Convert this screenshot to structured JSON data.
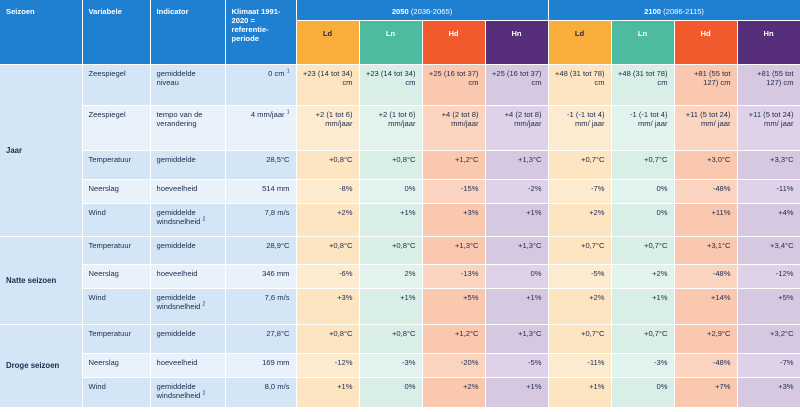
{
  "header": {
    "seizoen": "Seizoen",
    "variabele": "Variabele",
    "indicator": "Indicator",
    "klimaat": "Klimaat 1991-2020 = referentie-periode",
    "period_2050_year": "2050",
    "period_2050_range": "(2036-2065)",
    "period_2100_year": "2100",
    "period_2100_range": "(2086-2115)",
    "scenarios": [
      "Ld",
      "Ln",
      "Hd",
      "Hn",
      "Ld",
      "Ln",
      "Hd",
      "Hn"
    ],
    "scenario_colors": [
      "#f9ad3a",
      "#4dbba0",
      "#f05a2c",
      "#572e7a",
      "#f9ad3a",
      "#4dbba0",
      "#f05a2c",
      "#572e7a"
    ]
  },
  "seasons": [
    {
      "name": "Jaar",
      "rows": [
        {
          "variabele": "Zeespiegel",
          "indicator": "gemiddelde niveau",
          "ref": "0 cm",
          "ref_note": "1",
          "values": [
            "+23 (14 tot 34) cm",
            "+23 (14 tot 34) cm",
            "+25 (16 tot 37) cm",
            "+25 (16 tot 37) cm",
            "+48 (31 tot 78) cm",
            "+48 (31 tot 78) cm",
            "+81 (55 tot 127) cm",
            "+81 (55 tot 127) cm"
          ]
        },
        {
          "variabele": "Zeespiegel",
          "indicator": "tempo van de verandering",
          "ref": "4 mm/jaar",
          "ref_note": "1",
          "values": [
            "+2 (1 tot 6) mm/jaar",
            "+2 (1 tot 6) mm/jaar",
            "+4 (2 tot 8) mm/jaar",
            "+4 (2 tot 8) mm/jaar",
            "-1 (-1 tot 4) mm/ jaar",
            "-1 (-1 tot 4) mm/ jaar",
            "+11 (5 tot 24) mm/ jaar",
            "+11 (5 tot 24) mm/ jaar"
          ]
        },
        {
          "variabele": "Temperatuur",
          "indicator": "gemiddelde",
          "ref": "28,5°C",
          "ref_note": "",
          "values": [
            "+0,8°C",
            "+0,8°C",
            "+1,2°C",
            "+1,3°C",
            "+0,7°C",
            "+0,7°C",
            "+3,0°C",
            "+3,3°C"
          ]
        },
        {
          "variabele": "Neerslag",
          "indicator": "hoeveelheid",
          "ref": "514 mm",
          "ref_note": "",
          "values": [
            "-8%",
            "0%",
            "-15%",
            "-2%",
            "-7%",
            "0%",
            "-48%",
            "-11%"
          ]
        },
        {
          "variabele": "Wind",
          "indicator": "gemiddelde windsnelheid",
          "ind_note": "2",
          "ref": "7,8 m/s",
          "ref_note": "",
          "values": [
            "+2%",
            "+1%",
            "+3%",
            "+1%",
            "+2%",
            "0%",
            "+11%",
            "+4%"
          ]
        }
      ]
    },
    {
      "name": "Natte seizoen",
      "rows": [
        {
          "variabele": "Temperatuur",
          "indicator": "gemiddelde",
          "ref": "28,9°C",
          "ref_note": "",
          "values": [
            "+0,8°C",
            "+0,8°C",
            "+1,3°C",
            "+1,3°C",
            "+0,7°C",
            "+0,7°C",
            "+3,1°C",
            "+3,4°C"
          ]
        },
        {
          "variabele": "Neerslag",
          "indicator": "hoeveelheid",
          "ref": "346 mm",
          "ref_note": "",
          "values": [
            "-6%",
            "2%",
            "-13%",
            "0%",
            "-5%",
            "+2%",
            "-48%",
            "-12%"
          ]
        },
        {
          "variabele": "Wind",
          "indicator": "gemiddelde windsnelheid",
          "ind_note": "2",
          "ref": "7,6 m/s",
          "ref_note": "",
          "values": [
            "+3%",
            "+1%",
            "+5%",
            "+1%",
            "+2%",
            "+1%",
            "+14%",
            "+5%"
          ]
        }
      ]
    },
    {
      "name": "Droge seizoen",
      "rows": [
        {
          "variabele": "Temperatuur",
          "indicator": "gemiddelde",
          "ref": "27,8°C",
          "ref_note": "",
          "values": [
            "+0,8°C",
            "+0,8°C",
            "+1,2°C",
            "+1,3°C",
            "+0,7°C",
            "+0,7°C",
            "+2,9°C",
            "+3,2°C"
          ]
        },
        {
          "variabele": "Neerslag",
          "indicator": "hoeveelheid",
          "ref": "169 mm",
          "ref_note": "",
          "values": [
            "-12%",
            "-3%",
            "-20%",
            "-5%",
            "-11%",
            "-3%",
            "-48%",
            "-7%"
          ]
        },
        {
          "variabele": "Wind",
          "indicator": "gemiddelde windsnelheid",
          "ind_note": "2",
          "ref": "8,0 m/s",
          "ref_note": "",
          "values": [
            "+1%",
            "0%",
            "+2%",
            "+1%",
            "+1%",
            "0%",
            "+7%",
            "+3%"
          ]
        }
      ]
    }
  ]
}
